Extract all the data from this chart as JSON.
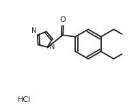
{
  "background_color": "#ffffff",
  "line_color": "#1a1a1a",
  "line_width": 1.3,
  "font_size": 7,
  "HCl_label": "HCl",
  "O_label": "O",
  "N_label": "N"
}
